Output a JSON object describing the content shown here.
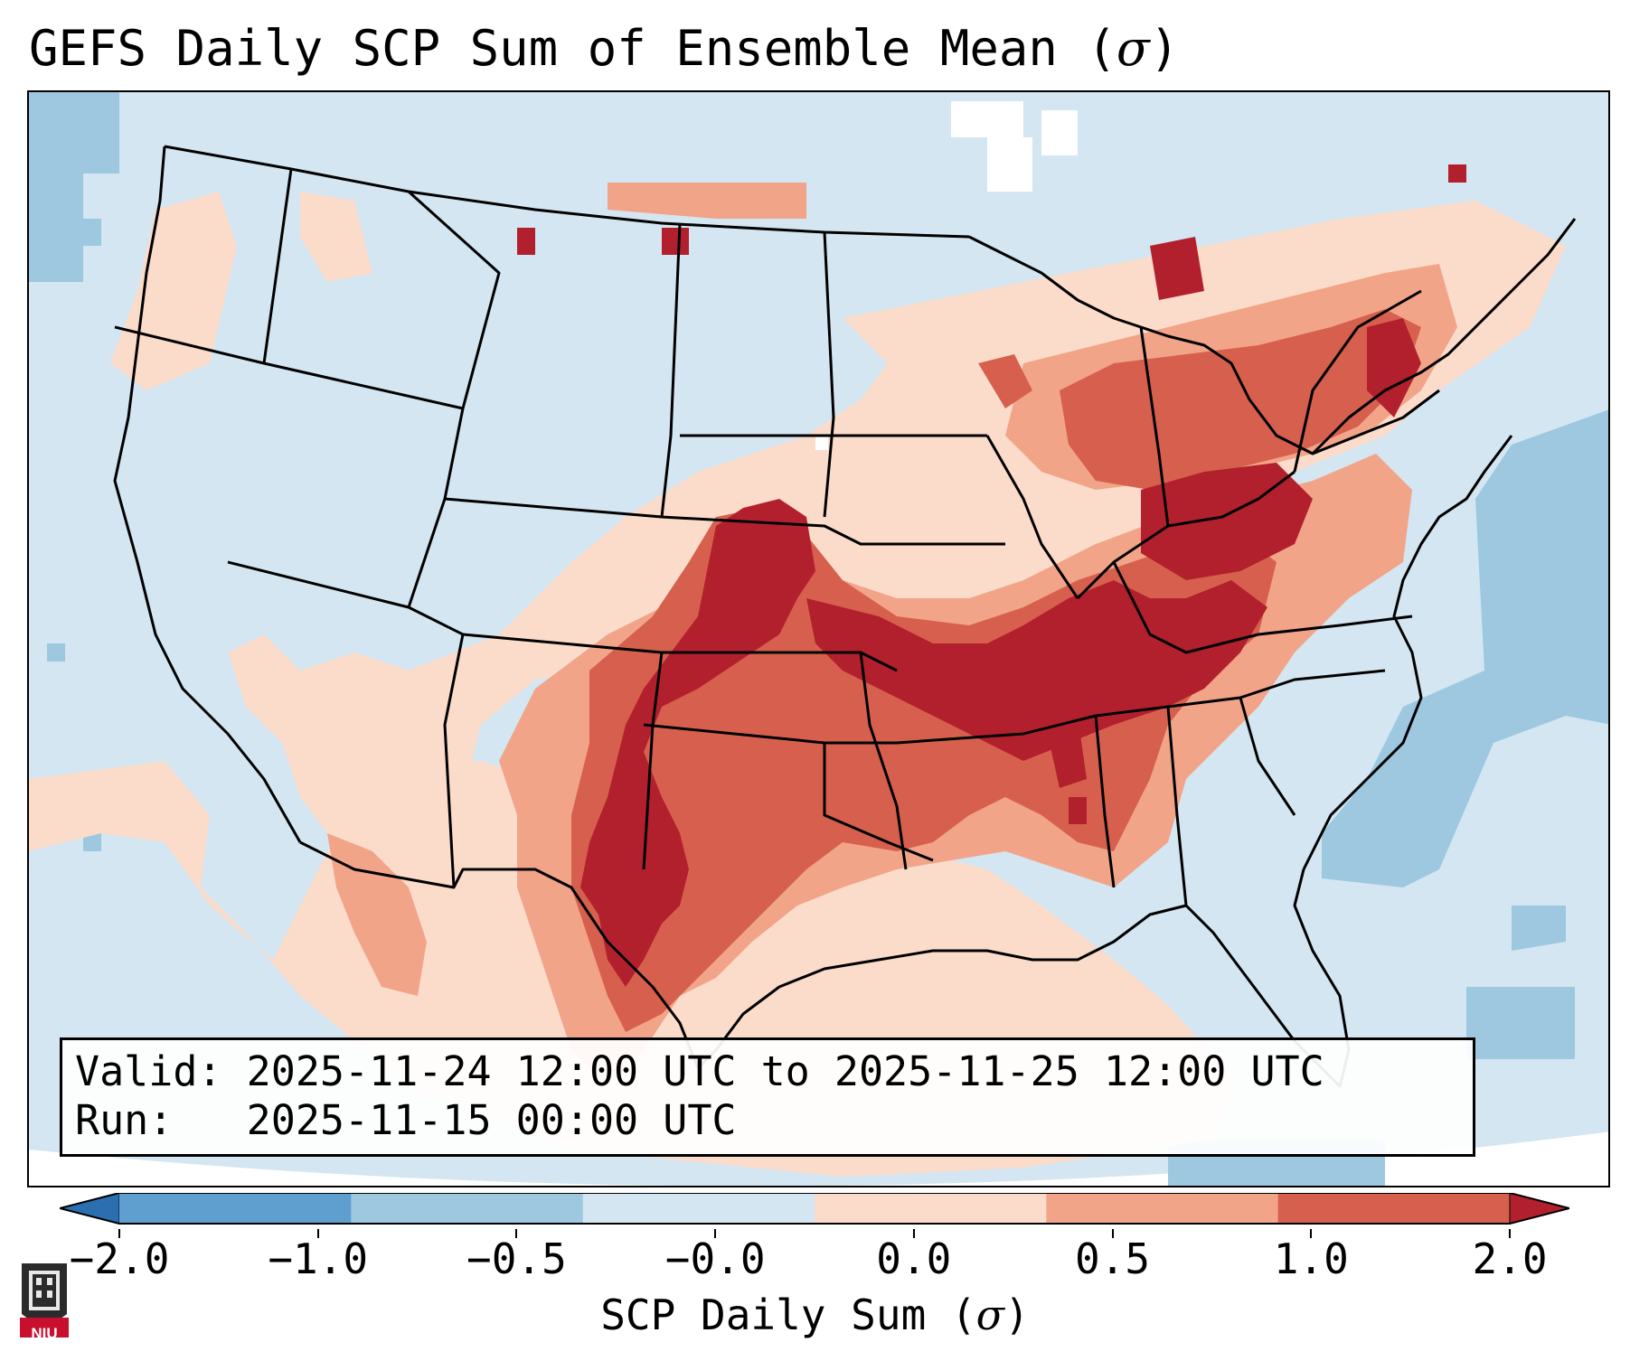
{
  "title": {
    "prefix": "GEFS Daily SCP Sum of Ensemble Mean (",
    "symbol": "σ",
    "suffix": ")"
  },
  "info": {
    "valid_label": "Valid:",
    "valid_value": "2025-11-24 12:00 UTC to 2025-11-25 12:00 UTC",
    "run_label": "Run:",
    "run_value": "2025-11-15 00:00 UTC"
  },
  "colorbar": {
    "label_prefix": "SCP Daily Sum (",
    "label_symbol": "σ",
    "label_suffix": ")",
    "tick_labels": [
      "−2.0",
      "−1.0",
      "−0.5",
      "−0.0",
      "0.0",
      "0.5",
      "1.0",
      "2.0"
    ],
    "colors": [
      "#2c6fb0",
      "#5e9fcf",
      "#9dc8e0",
      "#d3e6f1",
      "#fbdccb",
      "#f2a489",
      "#d6604d",
      "#b3202d"
    ],
    "extend": "both"
  },
  "logo": {
    "text": "NIU"
  },
  "map": {
    "region": "Continental United States, southern Canada, northern Mexico",
    "bins": [
      "<-1.0",
      "-1.0 to -0.5",
      "-0.5 to 0.0",
      "0.0 to 0.5",
      "0.5 to 1.0",
      ">1.0"
    ]
  }
}
